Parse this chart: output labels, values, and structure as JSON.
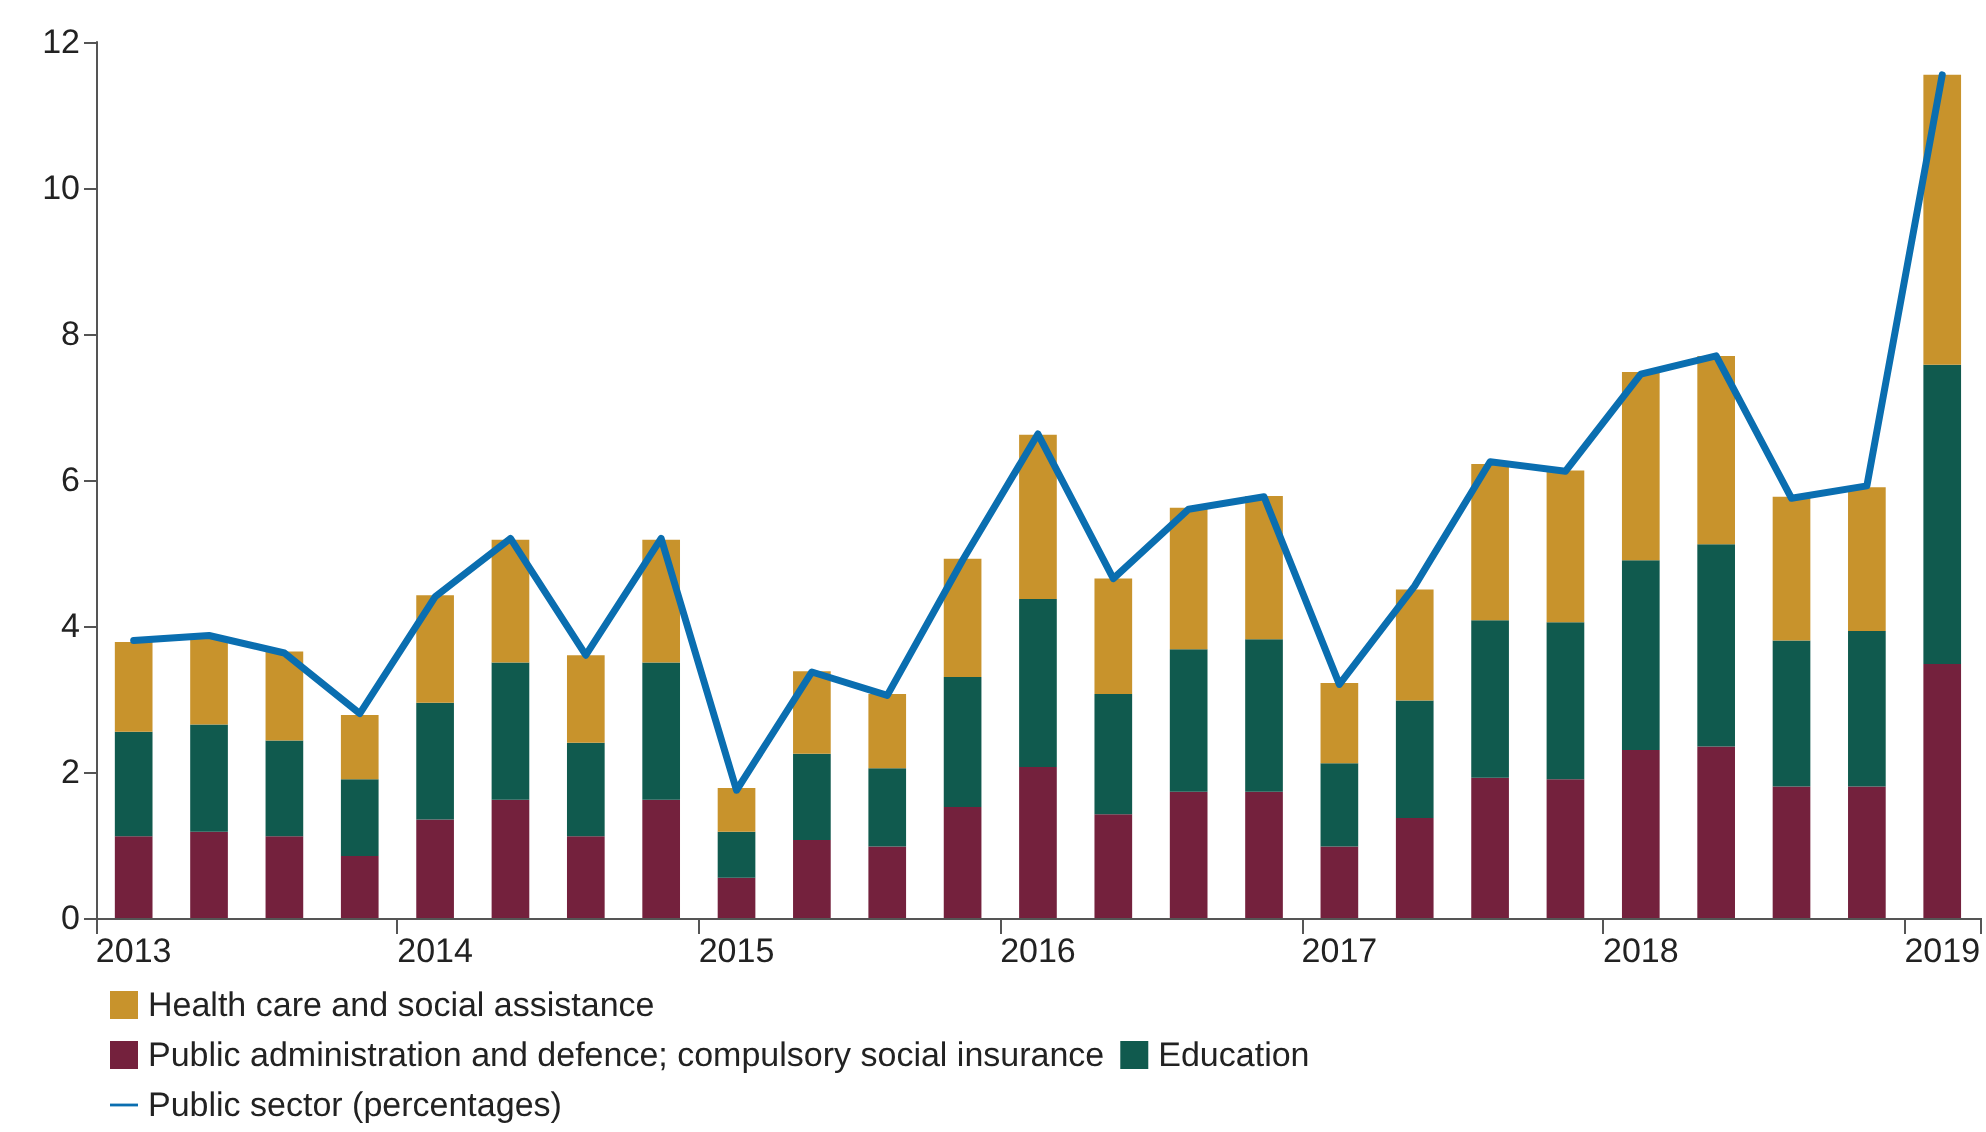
{
  "chart_data": {
    "type": "bar",
    "stacked": true,
    "categories": [
      "2013",
      null,
      null,
      null,
      "2014",
      null,
      null,
      null,
      "2015",
      null,
      null,
      null,
      "2016",
      null,
      null,
      null,
      "2017",
      null,
      null,
      null,
      "2018",
      null,
      null,
      null,
      "2019"
    ],
    "series": [
      {
        "name": "Public administration and defence; compulsory social insurance",
        "color": "#74213d",
        "values": [
          1.12,
          1.18,
          1.12,
          0.85,
          1.35,
          1.62,
          1.12,
          1.62,
          0.55,
          1.07,
          0.98,
          1.52,
          2.07,
          1.42,
          1.73,
          1.73,
          0.98,
          1.37,
          1.92,
          1.9,
          2.3,
          2.35,
          1.8,
          1.8,
          3.48
        ]
      },
      {
        "name": "Education",
        "color": "#105a4e",
        "values": [
          1.43,
          1.47,
          1.31,
          1.05,
          1.6,
          1.88,
          1.28,
          1.88,
          0.63,
          1.18,
          1.07,
          1.78,
          2.3,
          1.65,
          1.95,
          2.09,
          1.14,
          1.61,
          2.16,
          2.15,
          2.6,
          2.77,
          2.0,
          2.13,
          4.1
        ]
      },
      {
        "name": "Health care and social assistance",
        "color": "#c8932c",
        "values": [
          1.23,
          1.2,
          1.22,
          0.88,
          1.47,
          1.68,
          1.2,
          1.68,
          0.6,
          1.13,
          1.02,
          1.62,
          2.25,
          1.58,
          1.94,
          1.96,
          1.1,
          1.52,
          2.14,
          2.08,
          2.58,
          2.58,
          1.97,
          1.97,
          3.97
        ]
      },
      {
        "name": "Public sector (percentages)",
        "type": "line",
        "color": "#0a6eb0",
        "marker": "none",
        "line_style": "solid",
        "values": [
          3.8,
          3.87,
          3.63,
          2.8,
          4.4,
          5.2,
          3.6,
          5.2,
          1.75,
          3.37,
          3.05,
          4.9,
          6.63,
          4.65,
          5.6,
          5.77,
          3.2,
          4.55,
          6.25,
          6.12,
          7.45,
          7.7,
          5.75,
          5.92,
          11.55
        ]
      }
    ],
    "ylim": [
      0,
      12
    ],
    "yticks": [
      0,
      2,
      4,
      6,
      8,
      10,
      12
    ],
    "grid": false,
    "legend": "bottom"
  }
}
